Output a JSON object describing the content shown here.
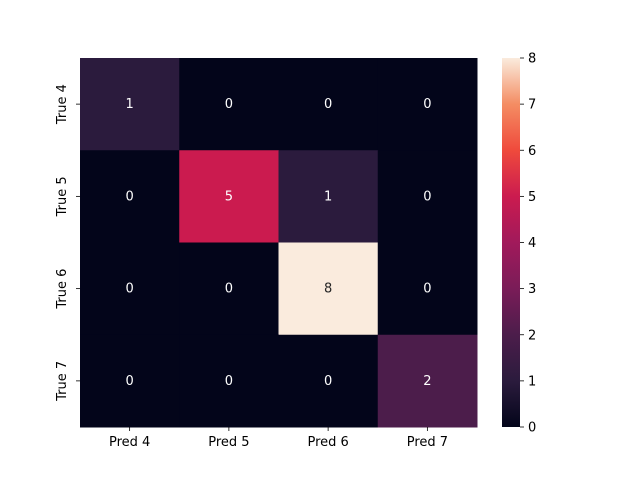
{
  "chart_data": {
    "type": "heatmap",
    "x_labels": [
      "Pred 4",
      "Pred 5",
      "Pred 6",
      "Pred 7"
    ],
    "y_labels": [
      "True 4",
      "True 5",
      "True 6",
      "True 7"
    ],
    "values": [
      [
        1,
        0,
        0,
        0
      ],
      [
        0,
        5,
        1,
        0
      ],
      [
        0,
        0,
        8,
        0
      ],
      [
        0,
        0,
        0,
        2
      ]
    ],
    "colorbar": {
      "min": 0,
      "max": 8,
      "ticks": [
        "0",
        "1",
        "2",
        "3",
        "4",
        "5",
        "6",
        "7",
        "8"
      ]
    },
    "colormap": "rocket",
    "annotations_shown": true,
    "title": "",
    "xlabel": "",
    "ylabel": ""
  }
}
